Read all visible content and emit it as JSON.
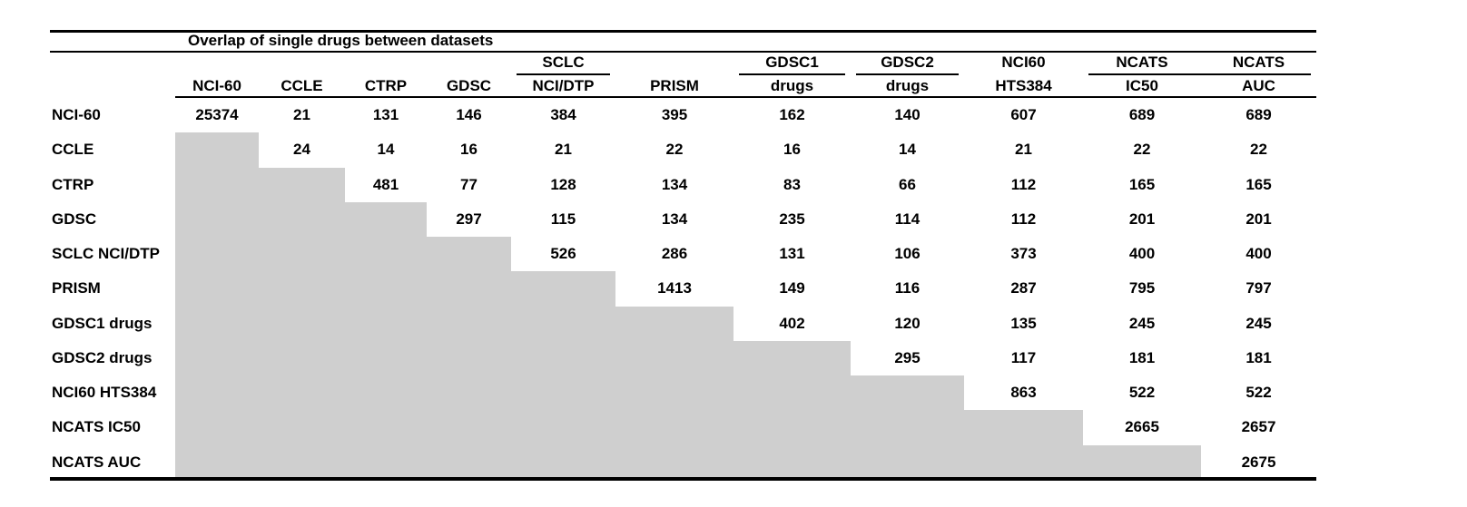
{
  "title": "Overlap of single drugs between datasets",
  "colors": {
    "shaded_cell": "#cfcfcf",
    "rule": "#000000",
    "text": "#000000",
    "background": "#ffffff"
  },
  "columns": [
    {
      "top": "",
      "bottom": "NCI-60"
    },
    {
      "top": "",
      "bottom": "CCLE"
    },
    {
      "top": "",
      "bottom": "CTRP"
    },
    {
      "top": "",
      "bottom": "GDSC"
    },
    {
      "top": "SCLC",
      "bottom": "NCI/DTP"
    },
    {
      "top": "",
      "bottom": "PRISM"
    },
    {
      "top": "GDSC1",
      "bottom": "drugs"
    },
    {
      "top": "GDSC2",
      "bottom": "drugs"
    },
    {
      "top": "NCI60",
      "bottom": "HTS384"
    },
    {
      "top": "NCATS",
      "bottom": "IC50"
    },
    {
      "top": "NCATS",
      "bottom": "AUC"
    }
  ],
  "header_underline_groups": [
    [
      4
    ],
    [
      6
    ],
    [
      7
    ],
    [
      9,
      10
    ]
  ],
  "rows": [
    {
      "label": "NCI-60",
      "values": [
        25374,
        21,
        131,
        146,
        384,
        395,
        162,
        140,
        607,
        689,
        689
      ]
    },
    {
      "label": "CCLE",
      "values": [
        null,
        24,
        14,
        16,
        21,
        22,
        16,
        14,
        21,
        22,
        22
      ]
    },
    {
      "label": "CTRP",
      "values": [
        null,
        null,
        481,
        77,
        128,
        134,
        83,
        66,
        112,
        165,
        165
      ]
    },
    {
      "label": "GDSC",
      "values": [
        null,
        null,
        null,
        297,
        115,
        134,
        235,
        114,
        112,
        201,
        201
      ]
    },
    {
      "label": "SCLC NCI/DTP",
      "values": [
        null,
        null,
        null,
        null,
        526,
        286,
        131,
        106,
        373,
        400,
        400
      ]
    },
    {
      "label": "PRISM",
      "values": [
        null,
        null,
        null,
        null,
        null,
        1413,
        149,
        116,
        287,
        795,
        797
      ]
    },
    {
      "label": "GDSC1 drugs",
      "values": [
        null,
        null,
        null,
        null,
        null,
        null,
        402,
        120,
        135,
        245,
        245
      ]
    },
    {
      "label": "GDSC2 drugs",
      "values": [
        null,
        null,
        null,
        null,
        null,
        null,
        null,
        295,
        117,
        181,
        181
      ]
    },
    {
      "label": "NCI60 HTS384",
      "values": [
        null,
        null,
        null,
        null,
        null,
        null,
        null,
        null,
        863,
        522,
        522
      ]
    },
    {
      "label": "NCATS IC50",
      "values": [
        null,
        null,
        null,
        null,
        null,
        null,
        null,
        null,
        null,
        2665,
        2657
      ]
    },
    {
      "label": "NCATS AUC",
      "values": [
        null,
        null,
        null,
        null,
        null,
        null,
        null,
        null,
        null,
        null,
        2675
      ]
    }
  ],
  "chart_data": {
    "type": "table",
    "title": "Overlap of single drugs between datasets",
    "row_labels": [
      "NCI-60",
      "CCLE",
      "CTRP",
      "GDSC",
      "SCLC NCI/DTP",
      "PRISM",
      "GDSC1 drugs",
      "GDSC2 drugs",
      "NCI60 HTS384",
      "NCATS IC50",
      "NCATS AUC"
    ],
    "column_labels": [
      "NCI-60",
      "CCLE",
      "CTRP",
      "GDSC",
      "SCLC NCI/DTP",
      "PRISM",
      "GDSC1 drugs",
      "GDSC2 drugs",
      "NCI60 HTS384",
      "NCATS IC50",
      "NCATS AUC"
    ],
    "matrix_upper_triangle": [
      [
        25374,
        21,
        131,
        146,
        384,
        395,
        162,
        140,
        607,
        689,
        689
      ],
      [
        null,
        24,
        14,
        16,
        21,
        22,
        16,
        14,
        21,
        22,
        22
      ],
      [
        null,
        null,
        481,
        77,
        128,
        134,
        83,
        66,
        112,
        165,
        165
      ],
      [
        null,
        null,
        null,
        297,
        115,
        134,
        235,
        114,
        112,
        201,
        201
      ],
      [
        null,
        null,
        null,
        null,
        526,
        286,
        131,
        106,
        373,
        400,
        400
      ],
      [
        null,
        null,
        null,
        null,
        null,
        1413,
        149,
        116,
        287,
        795,
        797
      ],
      [
        null,
        null,
        null,
        null,
        null,
        null,
        402,
        120,
        135,
        245,
        245
      ],
      [
        null,
        null,
        null,
        null,
        null,
        null,
        null,
        295,
        117,
        181,
        181
      ],
      [
        null,
        null,
        null,
        null,
        null,
        null,
        null,
        null,
        863,
        522,
        522
      ],
      [
        null,
        null,
        null,
        null,
        null,
        null,
        null,
        null,
        null,
        2665,
        2657
      ],
      [
        null,
        null,
        null,
        null,
        null,
        null,
        null,
        null,
        null,
        null,
        2675
      ]
    ]
  }
}
